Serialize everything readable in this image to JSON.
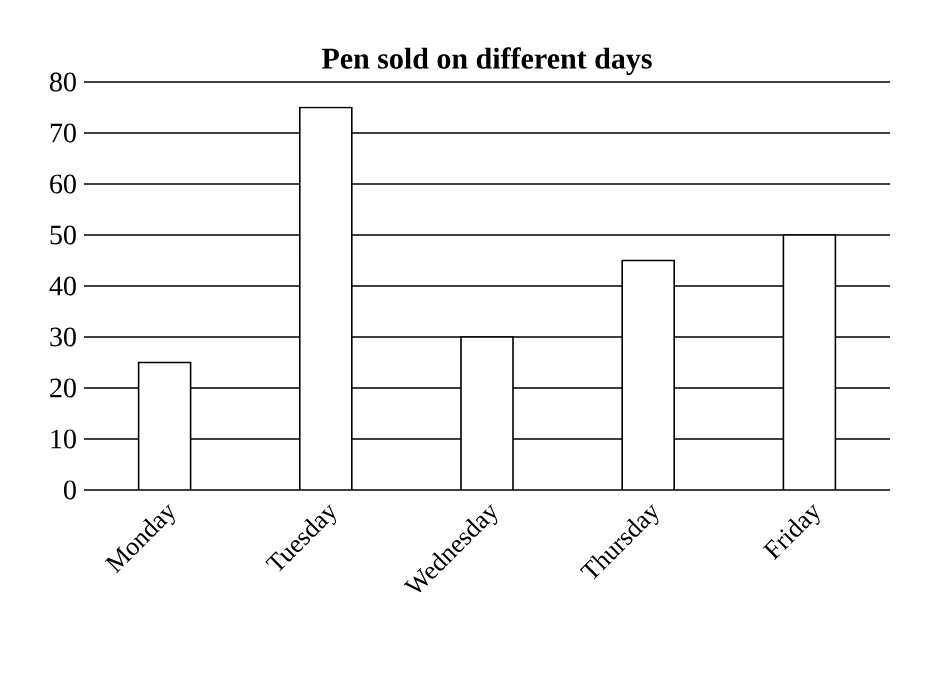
{
  "chart_data": {
    "type": "bar",
    "title": "Pen sold on different days",
    "categories": [
      "Monday",
      "Tuesday",
      "Wednesday",
      "Thursday",
      "Friday"
    ],
    "values": [
      25,
      75,
      30,
      45,
      50
    ],
    "color": "#ffffff",
    "ylim": [
      0,
      80
    ],
    "yticks": [
      0,
      10,
      20,
      30,
      40,
      50,
      60,
      70,
      80
    ],
    "grid": "y"
  }
}
